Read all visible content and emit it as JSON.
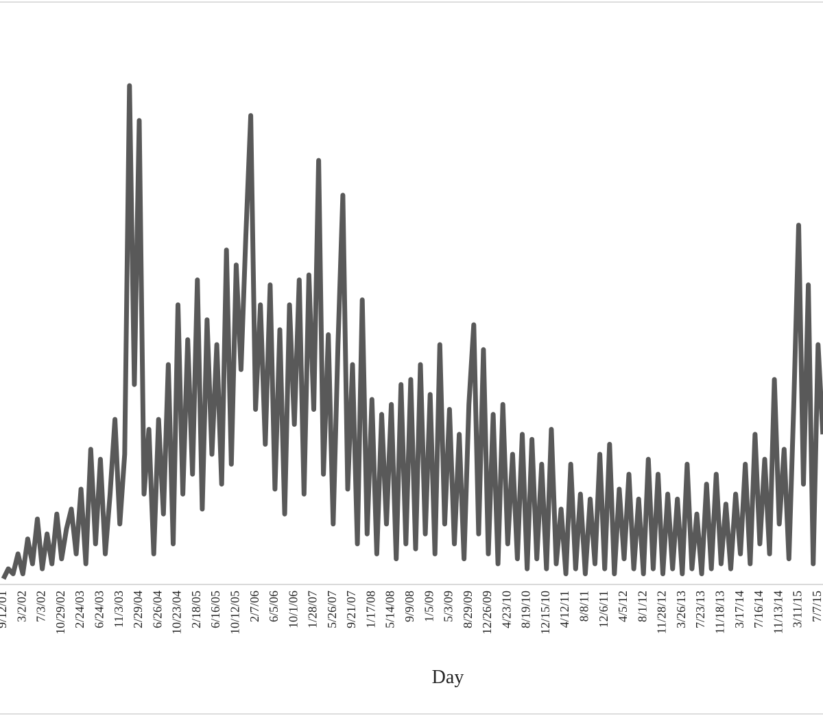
{
  "chart_data": {
    "type": "line",
    "x_label": "Day",
    "color": "#595959",
    "categories": [
      "9/12/01",
      null,
      null,
      null,
      "3/2/02",
      null,
      null,
      null,
      "7/3/02",
      null,
      null,
      null,
      "10/29/02",
      null,
      null,
      null,
      "2/24/03",
      null,
      null,
      null,
      "6/24/03",
      null,
      null,
      null,
      "11/3/03",
      null,
      null,
      null,
      "2/29/04",
      null,
      null,
      null,
      "6/26/04",
      null,
      null,
      null,
      "10/23/04",
      null,
      null,
      null,
      "2/18/05",
      null,
      null,
      null,
      "6/16/05",
      null,
      null,
      null,
      "10/12/05",
      null,
      null,
      null,
      "2/7/06",
      null,
      null,
      null,
      "6/5/06",
      null,
      null,
      null,
      "10/1/06",
      null,
      null,
      null,
      "1/28/07",
      null,
      null,
      null,
      "5/26/07",
      null,
      null,
      null,
      "9/21/07",
      null,
      null,
      null,
      "1/17/08",
      null,
      null,
      null,
      "5/14/08",
      null,
      null,
      null,
      "9/9/08",
      null,
      null,
      null,
      "1/5/09",
      null,
      null,
      null,
      "5/3/09",
      null,
      null,
      null,
      "8/29/09",
      null,
      null,
      null,
      "12/26/09",
      null,
      null,
      null,
      "4/23/10",
      null,
      null,
      null,
      "8/19/10",
      null,
      null,
      null,
      "12/15/10",
      null,
      null,
      null,
      "4/12/11",
      null,
      null,
      null,
      "8/8/11",
      null,
      null,
      null,
      "12/6/11",
      null,
      null,
      null,
      "4/5/12",
      null,
      null,
      null,
      "8/1/12",
      null,
      null,
      null,
      "11/28/12",
      null,
      null,
      null,
      "3/26/13",
      null,
      null,
      null,
      "7/23/13",
      null,
      null,
      null,
      "11/18/13",
      null,
      null,
      null,
      "3/17/14",
      null,
      null,
      null,
      "7/16/14",
      null,
      null,
      null,
      "11/13/14",
      null,
      null,
      null,
      "3/11/15",
      null,
      null,
      null,
      "7/7/15",
      null
    ],
    "values": [
      1,
      3,
      2,
      6,
      2,
      9,
      4,
      13,
      3,
      10,
      4,
      14,
      5,
      11,
      15,
      6,
      19,
      4,
      27,
      8,
      25,
      6,
      18,
      33,
      12,
      26,
      100,
      40,
      93,
      18,
      31,
      6,
      33,
      14,
      44,
      8,
      56,
      18,
      49,
      22,
      61,
      15,
      53,
      26,
      48,
      20,
      67,
      24,
      64,
      43,
      70,
      94,
      35,
      56,
      28,
      60,
      19,
      51,
      14,
      56,
      32,
      61,
      18,
      62,
      35,
      85,
      22,
      50,
      12,
      48,
      78,
      19,
      44,
      8,
      57,
      10,
      37,
      6,
      34,
      12,
      36,
      5,
      40,
      8,
      41,
      7,
      44,
      10,
      38,
      6,
      48,
      12,
      35,
      8,
      30,
      5,
      36,
      52,
      10,
      47,
      6,
      34,
      4,
      36,
      8,
      26,
      5,
      30,
      3,
      29,
      5,
      24,
      3,
      31,
      4,
      15,
      2,
      24,
      3,
      18,
      2,
      17,
      4,
      26,
      3,
      28,
      2,
      19,
      5,
      22,
      3,
      17,
      2,
      25,
      3,
      22,
      2,
      18,
      3,
      17,
      2,
      24,
      3,
      14,
      2,
      20,
      3,
      22,
      4,
      16,
      3,
      18,
      6,
      24,
      4,
      30,
      8,
      25,
      6,
      41,
      12,
      27,
      5,
      36,
      72,
      20,
      60,
      4,
      48,
      30
    ]
  }
}
